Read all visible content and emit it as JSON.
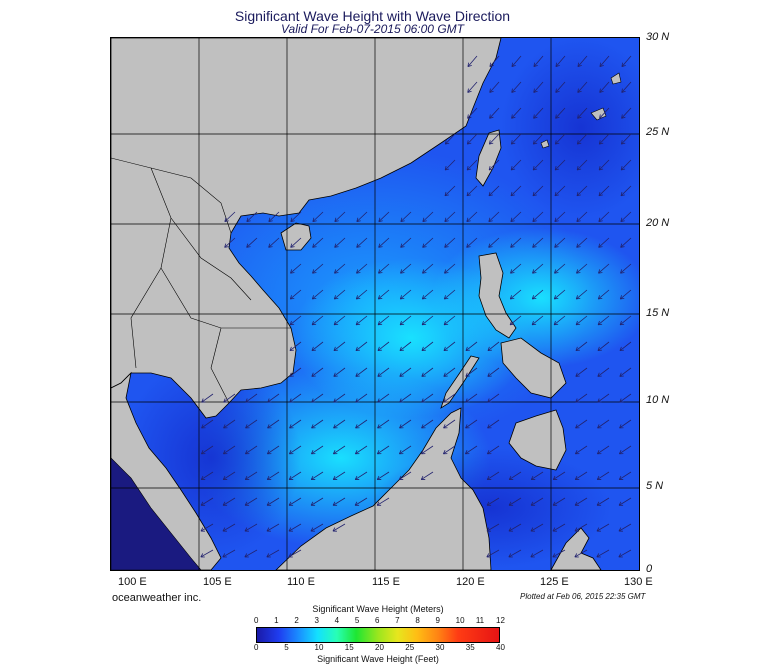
{
  "title": "Significant Wave Height with Wave Direction",
  "subtitle": "Valid For Feb-07-2015 06:00 GMT",
  "credit": "oceanweather inc.",
  "plotted": "Plotted at Feb 06, 2015 22:35 GMT",
  "lat_ticks": [
    "30 N",
    "25 N",
    "20 N",
    "15 N",
    "10 N",
    "5 N",
    "0"
  ],
  "lon_ticks": [
    "100 E",
    "105 E",
    "110 E",
    "115 E",
    "120 E",
    "125 E",
    "130 E"
  ],
  "colorbar": {
    "meters_title": "Significant Wave Height (Meters)",
    "feet_title": "Significant Wave Height (Feet)",
    "meters_labels": [
      "0",
      "1",
      "2",
      "3",
      "4",
      "5",
      "6",
      "7",
      "8",
      "9",
      "10",
      "11",
      "12"
    ],
    "feet_labels": [
      "0",
      "5",
      "10",
      "15",
      "20",
      "25",
      "30",
      "35",
      "40"
    ]
  },
  "colors": {
    "land": "#c0c0c0",
    "wave_low": "#1a1aa8",
    "wave_mid": "#1f7cff",
    "wave_high": "#19e6ff",
    "arrow": "#22226e"
  },
  "map": {
    "wave_direction": "northeast",
    "arrow_icon": "wave-direction-arrow-icon"
  }
}
